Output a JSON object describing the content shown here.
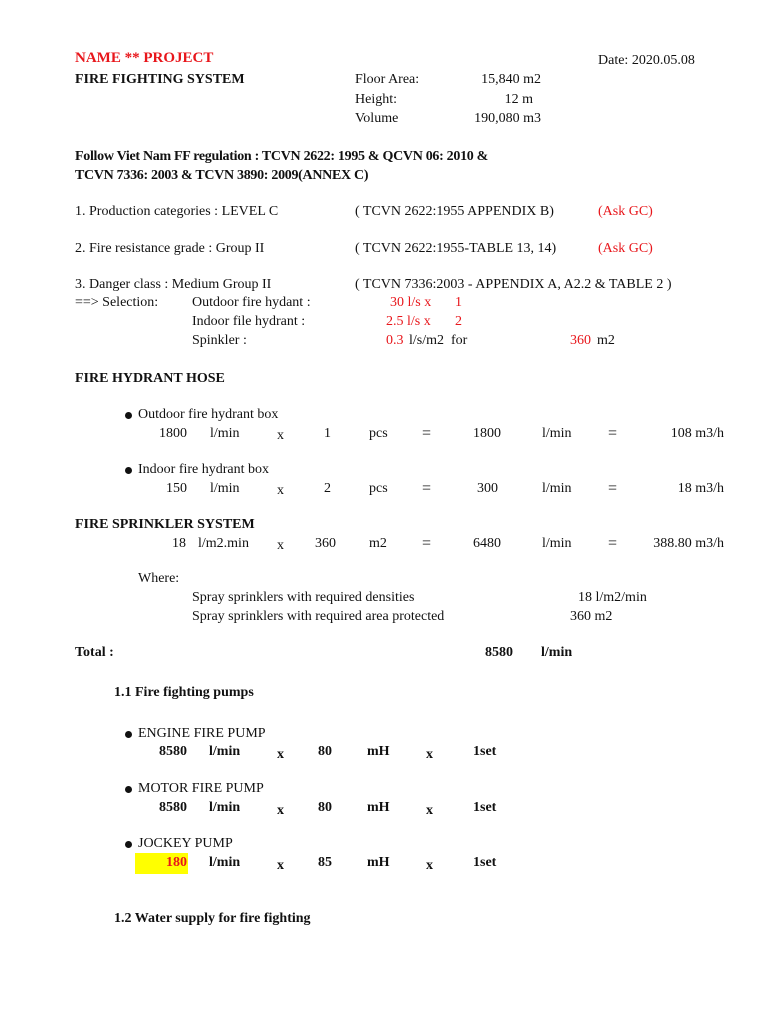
{
  "header": {
    "project_name": "NAME ** PROJECT",
    "date": "Date: 2020.05.08",
    "title": "FIRE FIGHTING SYSTEM",
    "floor_area_label": "Floor Area:",
    "floor_area_value": "15,840 m2",
    "height_label": "Height:",
    "height_value": "12 m",
    "volume_label": "Volume",
    "volume_value": "190,080 m3"
  },
  "regulation": {
    "line1": "Follow Viet Nam FF regulation : TCVN 2622: 1995 & QCVN 06: 2010 &",
    "line2": "TCVN 7336: 2003 & TCVN 3890: 2009(ANNEX C)"
  },
  "criteria": [
    {
      "label": "1. Production categories : LEVEL C",
      "reference": "( TCVN 2622:1955 APPENDIX B)",
      "note": "(Ask GC)"
    },
    {
      "label": "2. Fire resistance grade : Group II",
      "reference": "( TCVN 2622:1955-TABLE 13, 14)",
      "note": "(Ask GC)"
    },
    {
      "label": "3. Danger class : Medium Group II",
      "reference": "( TCVN 7336:2003 - APPENDIX A, A2.2 & TABLE 2 )"
    }
  ],
  "selection": {
    "label": "==> Selection:",
    "outdoor_label": "Outdoor fire hydant :",
    "outdoor_rate": "30 l/s x",
    "outdoor_qty": "1",
    "indoor_label": "Indoor file hydrant :",
    "indoor_rate": "2.5 l/s x",
    "indoor_qty": "2",
    "sprinkler_label": "Spinkler :",
    "sprinkler_density": "0.3",
    "sprinkler_unit": "l/s/m2  for",
    "sprinkler_area": "360",
    "sprinkler_area_unit": "m2"
  },
  "hydrant": {
    "title": "FIRE HYDRANT HOSE",
    "rows": [
      {
        "label": "Outdoor fire hydrant box",
        "flow": "1800",
        "flow_unit": "l/min",
        "times": "x",
        "qty": "1",
        "qty_unit": "pcs",
        "eq": "=",
        "total": "1800",
        "total_unit": "l/min",
        "eq2": "=",
        "hourly": "108 m3/h"
      },
      {
        "label": "Indoor fire hydrant box",
        "flow": "150",
        "flow_unit": "l/min",
        "times": "x",
        "qty": "2",
        "qty_unit": "pcs",
        "eq": "=",
        "total": "300",
        "total_unit": "l/min",
        "eq2": "=",
        "hourly": "18 m3/h"
      }
    ]
  },
  "sprinkler": {
    "title": "FIRE SPRINKLER SYSTEM",
    "row": {
      "flow": "18",
      "flow_unit": "l/m2.min",
      "times": "x",
      "qty": "360",
      "qty_unit": "m2",
      "eq": "=",
      "total": "6480",
      "total_unit": "l/min",
      "eq2": "=",
      "hourly": "388.80 m3/h"
    },
    "where_label": "Where:",
    "density_label": "Spray sprinklers with required densities",
    "density_value": "18 l/m2/min",
    "area_label": "Spray sprinklers with required area protected",
    "area_value": "360 m2"
  },
  "total": {
    "label": "Total :",
    "value": "8580",
    "unit": "l/min"
  },
  "pumps": {
    "title": "1.1 Fire fighting  pumps",
    "items": [
      {
        "label": "ENGINE FIRE PUMP",
        "flow": "8580",
        "flow_unit": "l/min",
        "times": "x",
        "head": "80",
        "head_unit": "mH",
        "times2": "x",
        "sets": "1set"
      },
      {
        "label": "MOTOR FIRE PUMP",
        "flow": "8580",
        "flow_unit": "l/min",
        "times": "x",
        "head": "80",
        "head_unit": "mH",
        "times2": "x",
        "sets": "1set"
      },
      {
        "label": "JOCKEY PUMP",
        "flow": "180",
        "flow_unit": "l/min",
        "times": "x",
        "head": "85",
        "head_unit": "mH",
        "times2": "x",
        "sets": "1set"
      }
    ],
    "highlight_color": "#ffff00"
  },
  "water_supply_title": "1.2 Water supply for fire fighting"
}
